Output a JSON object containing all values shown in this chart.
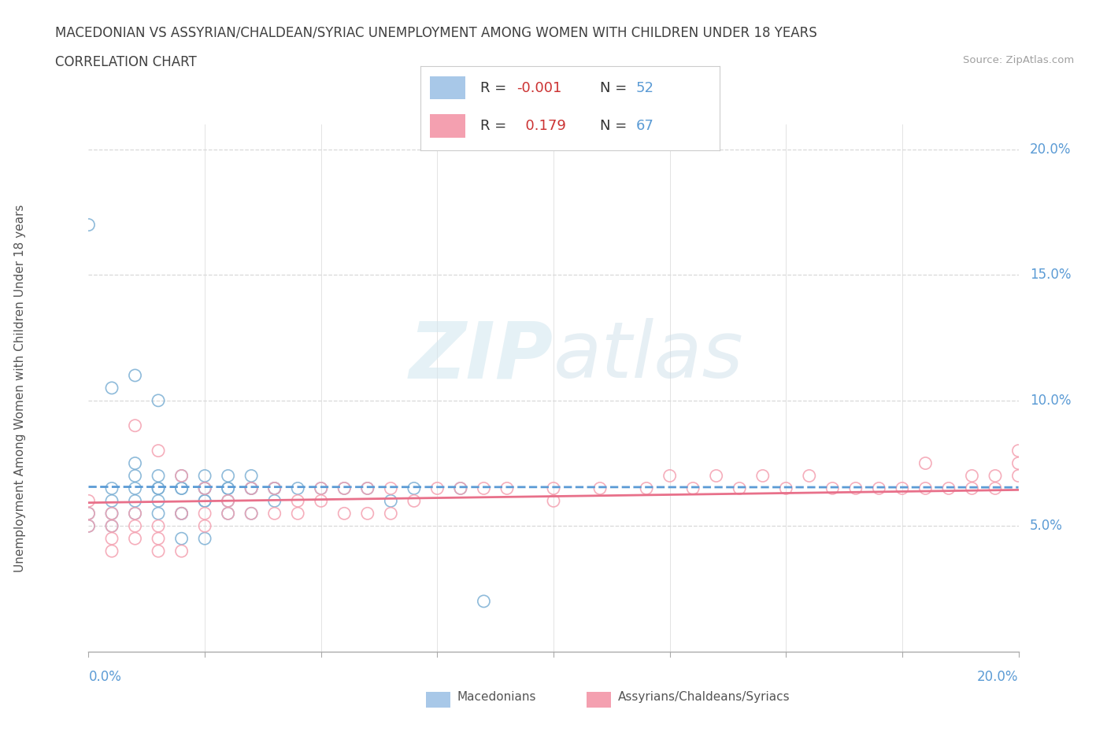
{
  "title_line1": "MACEDONIAN VS ASSYRIAN/CHALDEAN/SYRIAC UNEMPLOYMENT AMONG WOMEN WITH CHILDREN UNDER 18 YEARS",
  "title_line2": "CORRELATION CHART",
  "source_text": "Source: ZipAtlas.com",
  "ylabel": "Unemployment Among Women with Children Under 18 years",
  "xmin": 0.0,
  "xmax": 0.2,
  "ymin": 0.0,
  "ymax": 0.21,
  "macedonian_color": "#7bafd4",
  "assyrian_color": "#f4a0b0",
  "macedonian_R": -0.001,
  "macedonian_N": 52,
  "assyrian_R": 0.179,
  "assyrian_N": 67,
  "background_color": "#ffffff",
  "grid_color": "#d8d8d8",
  "axis_label_color": "#5b9bd5",
  "mac_trend_color": "#5b9bd5",
  "ass_trend_color": "#e8708a",
  "mac_x": [
    0.0,
    0.005,
    0.01,
    0.0,
    0.005,
    0.01,
    0.015,
    0.0,
    0.005,
    0.01,
    0.005,
    0.01,
    0.015,
    0.02,
    0.005,
    0.01,
    0.015,
    0.02,
    0.025,
    0.01,
    0.015,
    0.02,
    0.025,
    0.015,
    0.02,
    0.025,
    0.03,
    0.015,
    0.02,
    0.025,
    0.03,
    0.035,
    0.02,
    0.025,
    0.03,
    0.035,
    0.04,
    0.025,
    0.03,
    0.035,
    0.04,
    0.045,
    0.03,
    0.035,
    0.04,
    0.05,
    0.055,
    0.06,
    0.065,
    0.07,
    0.08,
    0.085
  ],
  "mac_y": [
    0.17,
    0.105,
    0.11,
    0.055,
    0.06,
    0.065,
    0.1,
    0.05,
    0.055,
    0.055,
    0.05,
    0.06,
    0.065,
    0.045,
    0.065,
    0.07,
    0.055,
    0.055,
    0.045,
    0.075,
    0.06,
    0.065,
    0.06,
    0.07,
    0.065,
    0.07,
    0.055,
    0.065,
    0.07,
    0.065,
    0.06,
    0.055,
    0.055,
    0.06,
    0.065,
    0.065,
    0.06,
    0.065,
    0.065,
    0.07,
    0.065,
    0.065,
    0.07,
    0.065,
    0.065,
    0.065,
    0.065,
    0.065,
    0.06,
    0.065,
    0.065,
    0.02
  ],
  "ass_x": [
    0.0,
    0.0,
    0.0,
    0.005,
    0.005,
    0.005,
    0.005,
    0.01,
    0.01,
    0.01,
    0.01,
    0.015,
    0.015,
    0.015,
    0.015,
    0.02,
    0.02,
    0.02,
    0.025,
    0.025,
    0.025,
    0.03,
    0.03,
    0.035,
    0.035,
    0.04,
    0.04,
    0.045,
    0.045,
    0.05,
    0.05,
    0.055,
    0.055,
    0.06,
    0.06,
    0.065,
    0.065,
    0.07,
    0.075,
    0.08,
    0.085,
    0.09,
    0.1,
    0.1,
    0.11,
    0.12,
    0.13,
    0.14,
    0.15,
    0.16,
    0.17,
    0.175,
    0.18,
    0.185,
    0.19,
    0.19,
    0.195,
    0.195,
    0.2,
    0.2,
    0.2,
    0.125,
    0.135,
    0.145,
    0.155,
    0.165,
    0.18
  ],
  "ass_y": [
    0.05,
    0.055,
    0.06,
    0.04,
    0.045,
    0.05,
    0.055,
    0.045,
    0.05,
    0.055,
    0.09,
    0.04,
    0.045,
    0.05,
    0.08,
    0.04,
    0.055,
    0.07,
    0.05,
    0.055,
    0.065,
    0.055,
    0.06,
    0.055,
    0.065,
    0.055,
    0.065,
    0.055,
    0.06,
    0.06,
    0.065,
    0.055,
    0.065,
    0.055,
    0.065,
    0.055,
    0.065,
    0.06,
    0.065,
    0.065,
    0.065,
    0.065,
    0.06,
    0.065,
    0.065,
    0.065,
    0.065,
    0.065,
    0.065,
    0.065,
    0.065,
    0.065,
    0.065,
    0.065,
    0.065,
    0.07,
    0.065,
    0.07,
    0.07,
    0.075,
    0.08,
    0.07,
    0.07,
    0.07,
    0.07,
    0.065,
    0.075
  ]
}
